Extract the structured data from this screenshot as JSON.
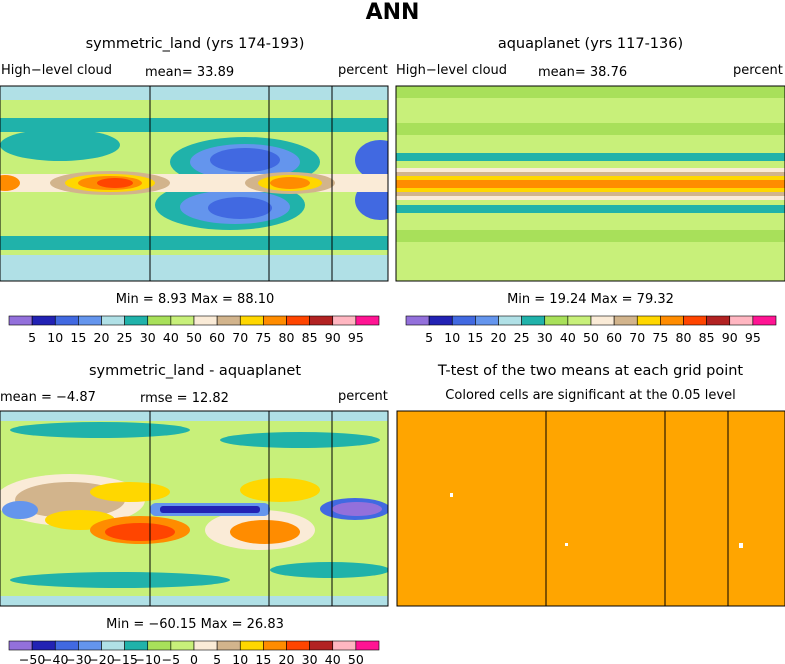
{
  "title": "ANN",
  "panels": {
    "p1": {
      "title": "symmetric_land (yrs 174-193)",
      "left": "High−level cloud",
      "center": "mean=   33.89",
      "right": "percent",
      "stats": "Min =    8.93  Max =   88.10"
    },
    "p2": {
      "title": "aquaplanet (yrs 117-136)",
      "left": "High−level cloud",
      "center": "mean=   38.76",
      "right": "percent",
      "stats": "Min =   19.24  Max =   79.32"
    },
    "p3": {
      "title": "symmetric_land - aquaplanet",
      "left": "mean =   −4.87",
      "center": "rmse =   12.82",
      "right": "percent",
      "stats": "Min = −60.15  Max =   26.83"
    },
    "p4": {
      "title": "T-test of the two means at each grid point",
      "subtitle": "Colored cells are significant at the 0.05 level"
    }
  },
  "chart_data": [
    {
      "type": "heatmap",
      "name": "symmetric_land",
      "variable": "High-level cloud",
      "units": "percent",
      "mean": 33.89,
      "min": 8.93,
      "max": 88.1,
      "colorbar": {
        "levels": [
          "5",
          "10",
          "15",
          "20",
          "25",
          "30",
          "40",
          "50",
          "60",
          "70",
          "75",
          "80",
          "85",
          "90",
          "95"
        ],
        "colors": [
          "#9370db",
          "#2222b4",
          "#4169e1",
          "#6495ed",
          "#b0e0e6",
          "#20b2aa",
          "#a8e05a",
          "#c8f07a",
          "#faebd7",
          "#d2b48c",
          "#ffd700",
          "#ff8c00",
          "#ff4500",
          "#b22222",
          "#ffb6c1",
          "#ff1493"
        ]
      }
    },
    {
      "type": "heatmap",
      "name": "aquaplanet",
      "variable": "High-level cloud",
      "units": "percent",
      "mean": 38.76,
      "min": 19.24,
      "max": 79.32,
      "colorbar": {
        "levels": [
          "5",
          "10",
          "15",
          "20",
          "25",
          "30",
          "40",
          "50",
          "60",
          "70",
          "75",
          "80",
          "85",
          "90",
          "95"
        ],
        "colors": [
          "#9370db",
          "#2222b4",
          "#4169e1",
          "#6495ed",
          "#b0e0e6",
          "#20b2aa",
          "#a8e05a",
          "#c8f07a",
          "#faebd7",
          "#d2b48c",
          "#ffd700",
          "#ff8c00",
          "#ff4500",
          "#b22222",
          "#ffb6c1",
          "#ff1493"
        ]
      }
    },
    {
      "type": "heatmap",
      "name": "symmetric_land - aquaplanet",
      "units": "percent",
      "mean": -4.87,
      "rmse": 12.82,
      "min": -60.15,
      "max": 26.83,
      "colorbar": {
        "levels": [
          "−50",
          "−40",
          "−30",
          "−20",
          "−15",
          "−10",
          "−5",
          "0",
          "5",
          "10",
          "15",
          "20",
          "30",
          "40",
          "50"
        ],
        "colors": [
          "#9370db",
          "#2222b4",
          "#4169e1",
          "#6495ed",
          "#b0e0e6",
          "#20b2aa",
          "#a8e05a",
          "#c8f07a",
          "#faebd7",
          "#d2b48c",
          "#ffd700",
          "#ff8c00",
          "#ff4500",
          "#b22222",
          "#ffb6c1",
          "#ff1493"
        ]
      }
    },
    {
      "type": "heatmap",
      "name": "T-test",
      "fill_color": "#ffa500",
      "significance_level": 0.05
    }
  ]
}
